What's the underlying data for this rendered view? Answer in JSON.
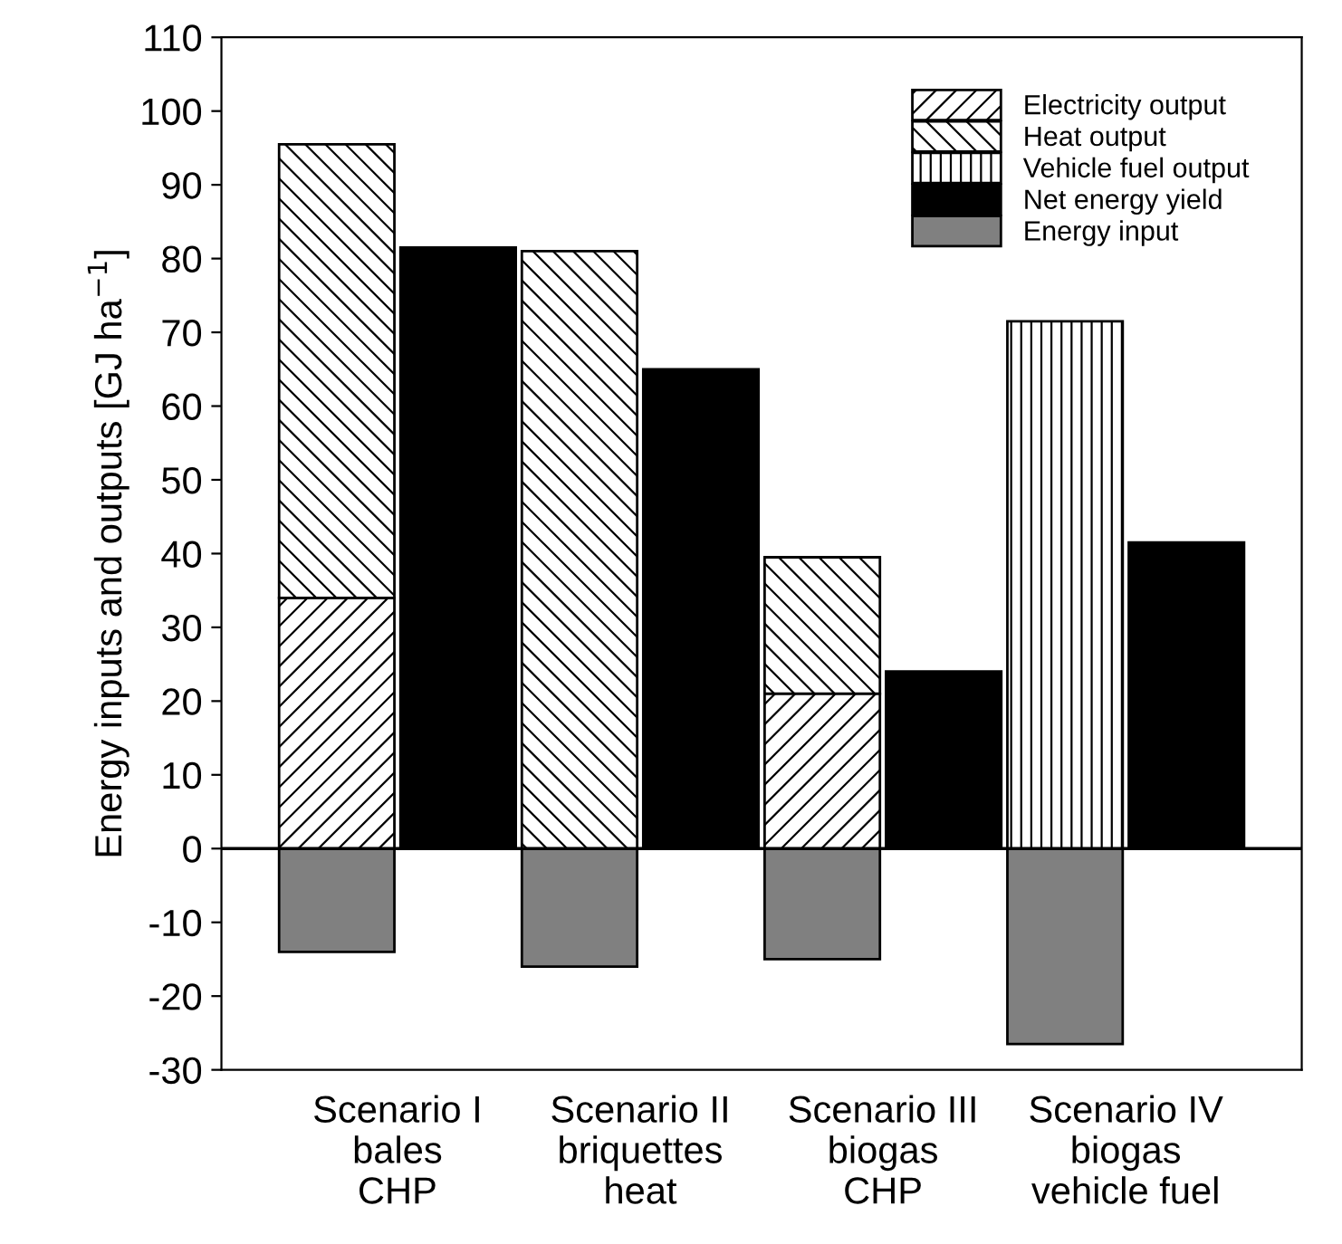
{
  "chart_data": {
    "type": "bar",
    "stacked": true,
    "categories": [
      "Scenario I\nbales\nCHP",
      null,
      "Scenario II\nbriquettes\nheat",
      null,
      "Scenario III\nbiogas\nCHP",
      null,
      "Scenario IV\nbiogas\nvehicle fuel",
      null
    ],
    "ylabel": "Energy inputs and outputs [GJ ha$^{−1}$]",
    "series": [
      {
        "name": "Electricity output",
        "color": "#000000",
        "values": [
          34,
          null,
          null,
          null,
          21,
          null,
          null,
          null
        ]
      },
      {
        "name": "Heat output",
        "color": "#000000",
        "values": [
          61.5,
          null,
          81,
          null,
          18.5,
          null,
          null,
          null
        ]
      },
      {
        "name": "Vehicle fuel output",
        "color": "#000000",
        "values": [
          null,
          null,
          null,
          null,
          null,
          null,
          71.5,
          null
        ]
      },
      {
        "name": "Net energy yield",
        "color": "#000000",
        "values": [
          null,
          81.5,
          null,
          65,
          null,
          24,
          null,
          41.5
        ]
      },
      {
        "name": "Energy input",
        "color": "#808080",
        "values": [
          -14,
          null,
          -16,
          null,
          -15,
          null,
          -26.5,
          null
        ]
      }
    ],
    "ylim": [
      -30,
      110
    ],
    "yticks": [
      -30,
      -20,
      -10,
      0,
      10,
      20,
      30,
      40,
      50,
      60,
      70,
      80,
      90,
      100,
      110
    ],
    "ref_lines": [
      {
        "axis": "y",
        "value": 0,
        "color": "#000000"
      }
    ],
    "legend": "top right"
  }
}
